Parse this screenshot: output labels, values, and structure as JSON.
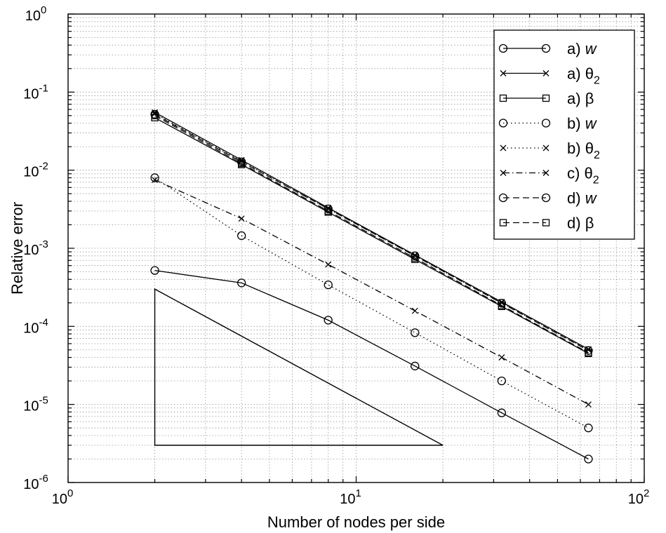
{
  "chart_data": {
    "type": "line",
    "title": "",
    "xlabel": "Number of nodes per side",
    "ylabel": "Relative error",
    "xscale": "log",
    "yscale": "log",
    "xlim": [
      1,
      100
    ],
    "ylim": [
      1e-06,
      1
    ],
    "grid": true,
    "legend_position": "top-right",
    "x_ticks": [
      {
        "value": 1,
        "base": "10",
        "exp": "0"
      },
      {
        "value": 10,
        "base": "10",
        "exp": "1"
      },
      {
        "value": 100,
        "base": "10",
        "exp": "2"
      }
    ],
    "y_ticks": [
      {
        "value": 1,
        "base": "10",
        "exp": "0"
      },
      {
        "value": 0.1,
        "base": "10",
        "exp": "-1"
      },
      {
        "value": 0.01,
        "base": "10",
        "exp": "-2"
      },
      {
        "value": 0.001,
        "base": "10",
        "exp": "-3"
      },
      {
        "value": 0.0001,
        "base": "10",
        "exp": "-4"
      },
      {
        "value": 1e-05,
        "base": "10",
        "exp": "-5"
      },
      {
        "value": 1e-06,
        "base": "10",
        "exp": "-6"
      }
    ],
    "x": [
      2,
      4,
      8,
      16,
      32,
      64
    ],
    "series": [
      {
        "name": "a) w",
        "prefix": "a) ",
        "symbol": "w",
        "sub": "",
        "symbol_italic": true,
        "line": "solid",
        "marker": "circle",
        "values": [
          0.00052,
          0.00036,
          0.00012,
          3.1e-05,
          7.8e-06,
          2e-06
        ]
      },
      {
        "name": "a) θ2",
        "prefix": "a) ",
        "symbol": "θ",
        "sub": "2",
        "symbol_italic": false,
        "line": "solid",
        "marker": "x",
        "values": [
          0.055,
          0.0135,
          0.0033,
          0.00082,
          0.000205,
          5.1e-05
        ]
      },
      {
        "name": "a) β",
        "prefix": "a) ",
        "symbol": "β",
        "sub": "",
        "symbol_italic": false,
        "line": "solid",
        "marker": "square",
        "values": [
          0.047,
          0.0118,
          0.0029,
          0.00072,
          0.00018,
          4.5e-05
        ]
      },
      {
        "name": "b) w",
        "prefix": "b) ",
        "symbol": "w",
        "sub": "",
        "symbol_italic": true,
        "line": "dotted",
        "marker": "circle",
        "values": [
          0.008,
          0.00145,
          0.00034,
          8.3e-05,
          2e-05,
          5e-06
        ]
      },
      {
        "name": "b) θ2",
        "prefix": "b) ",
        "symbol": "θ",
        "sub": "2",
        "symbol_italic": false,
        "line": "dotted",
        "marker": "x",
        "values": [
          0.053,
          0.013,
          0.0032,
          0.0008,
          0.0002,
          5e-05
        ]
      },
      {
        "name": "c) θ2",
        "prefix": "c) ",
        "symbol": "θ",
        "sub": "2",
        "symbol_italic": false,
        "line": "dashdot",
        "marker": "x",
        "values": [
          0.0075,
          0.0024,
          0.00062,
          0.000158,
          4e-05,
          1e-05
        ]
      },
      {
        "name": "d) w",
        "prefix": "d) ",
        "symbol": "w",
        "sub": "",
        "symbol_italic": true,
        "line": "dashed",
        "marker": "circle",
        "values": [
          0.052,
          0.0128,
          0.0032,
          0.0008,
          0.000198,
          4.9e-05
        ]
      },
      {
        "name": "d) β",
        "prefix": "d) ",
        "symbol": "β",
        "sub": "",
        "symbol_italic": false,
        "line": "dashed",
        "marker": "square",
        "values": [
          0.05,
          0.0122,
          0.003,
          0.00075,
          0.000185,
          4.6e-05
        ]
      }
    ],
    "slope_triangle": {
      "x": [
        2,
        2,
        20
      ],
      "y": [
        0.0003,
        3e-06,
        3e-06
      ]
    }
  },
  "colors": {
    "line": "#000000",
    "grid": "#7f7f7f",
    "background": "#ffffff"
  }
}
